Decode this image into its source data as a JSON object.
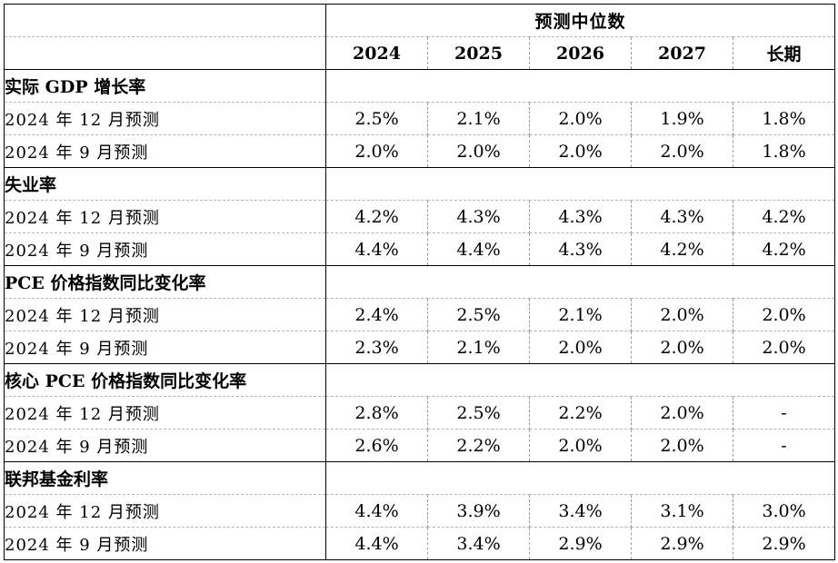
{
  "header": {
    "caption": "预测中位数",
    "columns": [
      "2024",
      "2025",
      "2026",
      "2027",
      "长期"
    ]
  },
  "sections": [
    {
      "title": "实际 GDP 增长率",
      "rows": [
        {
          "label": "2024 年 12 月预测",
          "values": [
            "2.5%",
            "2.1%",
            "2.0%",
            "1.9%",
            "1.8%"
          ]
        },
        {
          "label": "2024 年 9 月预测",
          "values": [
            "2.0%",
            "2.0%",
            "2.0%",
            "2.0%",
            "1.8%"
          ]
        }
      ]
    },
    {
      "title": "失业率",
      "rows": [
        {
          "label": "2024 年 12 月预测",
          "values": [
            "4.2%",
            "4.3%",
            "4.3%",
            "4.3%",
            "4.2%"
          ]
        },
        {
          "label": "2024 年 9 月预测",
          "values": [
            "4.4%",
            "4.4%",
            "4.3%",
            "4.2%",
            "4.2%"
          ]
        }
      ]
    },
    {
      "title": "PCE 价格指数同比变化率",
      "rows": [
        {
          "label": "2024 年 12 月预测",
          "values": [
            "2.4%",
            "2.5%",
            "2.1%",
            "2.0%",
            "2.0%"
          ]
        },
        {
          "label": "2024 年 9 月预测",
          "values": [
            "2.3%",
            "2.1%",
            "2.0%",
            "2.0%",
            "2.0%"
          ]
        }
      ]
    },
    {
      "title": "核心 PCE 价格指数同比变化率",
      "rows": [
        {
          "label": "2024 年 12 月预测",
          "values": [
            "2.8%",
            "2.5%",
            "2.2%",
            "2.0%",
            "-"
          ]
        },
        {
          "label": "2024 年 9 月预测",
          "values": [
            "2.6%",
            "2.2%",
            "2.0%",
            "2.0%",
            "-"
          ]
        }
      ]
    },
    {
      "title": "联邦基金利率",
      "rows": [
        {
          "label": "2024 年 12 月预测",
          "values": [
            "4.4%",
            "3.9%",
            "3.4%",
            "3.1%",
            "3.0%"
          ]
        },
        {
          "label": "2024 年 9 月预测",
          "values": [
            "4.4%",
            "3.4%",
            "2.9%",
            "2.9%",
            "2.9%"
          ]
        }
      ]
    }
  ]
}
